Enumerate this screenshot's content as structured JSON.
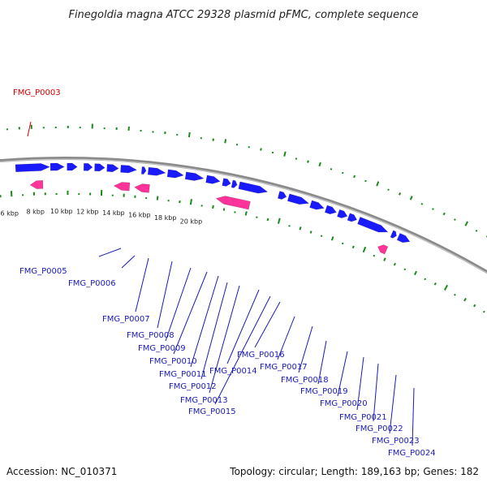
{
  "title": "Finegoldia magna ATCC 29328 plasmid pFMC, complete sequence",
  "footer": {
    "accession": "Accession: NC_010371",
    "summary": "Topology: circular; Length: 189,163 bp; Genes: 182"
  },
  "colors": {
    "backbone": "#8a8a8a",
    "forward_gene": "#1a1aff",
    "reverse_gene": "#ff3399",
    "highlight_gene": "#ff1a1a",
    "gc_skew_ticks": "#1a8a1a",
    "label": "#1a1ab8",
    "highlight_label": "#d40000"
  },
  "scale_labels": [
    "6 kbp",
    "8 kbp",
    "10 kbp",
    "12 kbp",
    "14 kbp",
    "16 kbp",
    "18 kbp",
    "20 kbp"
  ],
  "genes": [
    {
      "label": "FMG_P0003",
      "highlight": true
    },
    {
      "label": "FMG_P0005",
      "highlight": false
    },
    {
      "label": "FMG_P0006",
      "highlight": false
    },
    {
      "label": "FMG_P0007",
      "highlight": false
    },
    {
      "label": "FMG_P0008",
      "highlight": false
    },
    {
      "label": "FMG_P0009",
      "highlight": false
    },
    {
      "label": "FMG_P0010",
      "highlight": false
    },
    {
      "label": "FMG_P0011",
      "highlight": false
    },
    {
      "label": "FMG_P0012",
      "highlight": false
    },
    {
      "label": "FMG_P0013",
      "highlight": false
    },
    {
      "label": "FMG_P0014",
      "highlight": false
    },
    {
      "label": "FMG_P0015",
      "highlight": false
    },
    {
      "label": "FMG_P0016",
      "highlight": false
    },
    {
      "label": "FMG_P0017",
      "highlight": false
    },
    {
      "label": "FMG_P0018",
      "highlight": false
    },
    {
      "label": "FMG_P0019",
      "highlight": false
    },
    {
      "label": "FMG_P0020",
      "highlight": false
    },
    {
      "label": "FMG_P0021",
      "highlight": false
    },
    {
      "label": "FMG_P0022",
      "highlight": false
    },
    {
      "label": "FMG_P0023",
      "highlight": false
    },
    {
      "label": "FMG_P0024",
      "highlight": false
    }
  ]
}
